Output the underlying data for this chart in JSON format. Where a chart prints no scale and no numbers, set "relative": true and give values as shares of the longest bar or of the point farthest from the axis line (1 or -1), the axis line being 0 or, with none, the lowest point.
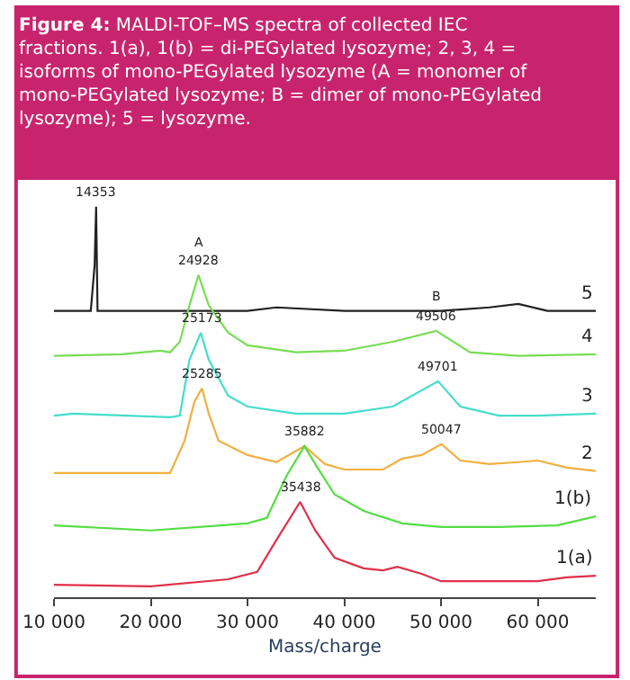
{
  "chart_data": {
    "type": "line",
    "relative": true,
    "title": "Figure 4: MALDI-TOF–MS spectra of collected IEC fractions. 1(a), 1(b) = di-PEGylated lysozyme; 2, 3, 4 = isoforms of mono-PEGylated lysozyme (A = monomer of mono-PEGylated lysozyme; B = dimer of mono-PEGylated lysozyme); 5 = lysozyme.",
    "xlabel": "Mass/charge",
    "xlim": [
      10000,
      66000
    ],
    "xticks": [
      {
        "value": 10000,
        "label": "10 000"
      },
      {
        "value": 20000,
        "label": "20 000"
      },
      {
        "value": 30000,
        "label": "30 000"
      },
      {
        "value": 40000,
        "label": "40 000"
      },
      {
        "value": 50000,
        "label": "50 000"
      },
      {
        "value": 60000,
        "label": "60 000"
      }
    ],
    "grid": false,
    "legend": false,
    "marker": "none",
    "line_style": "solid",
    "tick_labels": "x",
    "series": [
      {
        "name": "5",
        "color": "#222222",
        "x": [
          10000,
          13800,
          14200,
          14353,
          14500,
          24000,
          30000,
          33000,
          40000,
          44000,
          50000,
          55000,
          58000,
          61000,
          66000
        ],
        "values": [
          0.733,
          0.733,
          0.85,
          1.0,
          0.733,
          0.733,
          0.733,
          0.742,
          0.733,
          0.733,
          0.733,
          0.742,
          0.751,
          0.733,
          0.733
        ]
      },
      {
        "name": "4",
        "color": "#77dd55",
        "x": [
          10000,
          17000,
          21000,
          22000,
          23000,
          24000,
          24928,
          26000,
          28000,
          30000,
          35000,
          40000,
          45000,
          49506,
          53000,
          58000,
          66000
        ],
        "values": [
          0.618,
          0.622,
          0.631,
          0.627,
          0.654,
          0.747,
          0.825,
          0.747,
          0.677,
          0.645,
          0.627,
          0.631,
          0.654,
          0.682,
          0.627,
          0.618,
          0.622
        ]
      },
      {
        "name": "3",
        "color": "#44ddcc",
        "x": [
          10000,
          12000,
          22000,
          23000,
          24000,
          25173,
          26000,
          28000,
          30000,
          35000,
          40000,
          45000,
          49701,
          52000,
          56000,
          60000,
          66000
        ],
        "values": [
          0.465,
          0.47,
          0.461,
          0.465,
          0.608,
          0.677,
          0.608,
          0.516,
          0.488,
          0.47,
          0.47,
          0.488,
          0.553,
          0.488,
          0.465,
          0.465,
          0.47
        ]
      },
      {
        "name": "2",
        "color": "#f0b040",
        "x": [
          10000,
          22000,
          23500,
          24500,
          25285,
          26000,
          27000,
          30000,
          33000,
          35882,
          38000,
          40000,
          44000,
          46000,
          48000,
          50047,
          52000,
          55000,
          58000,
          60000,
          63000,
          66000
        ],
        "values": [
          0.318,
          0.318,
          0.401,
          0.5,
          0.535,
          0.47,
          0.401,
          0.364,
          0.346,
          0.387,
          0.341,
          0.327,
          0.327,
          0.355,
          0.364,
          0.392,
          0.35,
          0.341,
          0.346,
          0.35,
          0.332,
          0.323
        ]
      },
      {
        "name": "1(b)",
        "color": "#55dd44",
        "x": [
          10000,
          20000,
          30000,
          32000,
          34000,
          35882,
          37000,
          39000,
          42000,
          46000,
          50000,
          56000,
          62000,
          66000
        ],
        "values": [
          0.184,
          0.171,
          0.189,
          0.203,
          0.309,
          0.387,
          0.341,
          0.263,
          0.221,
          0.189,
          0.18,
          0.18,
          0.184,
          0.207
        ]
      },
      {
        "name": "1(a)",
        "color": "#e0304a",
        "x": [
          10000,
          20000,
          28000,
          31000,
          33000,
          35438,
          37000,
          39000,
          42000,
          44000,
          45500,
          48000,
          50000,
          60000,
          63000,
          66000
        ],
        "values": [
          0.032,
          0.028,
          0.046,
          0.065,
          0.147,
          0.244,
          0.171,
          0.101,
          0.074,
          0.069,
          0.078,
          0.06,
          0.041,
          0.041,
          0.051,
          0.055
        ]
      }
    ],
    "annotations": [
      {
        "text": "14353",
        "x": 14353,
        "y": 1.0
      },
      {
        "text": "24928",
        "x": 24928,
        "y": 0.825
      },
      {
        "text": "A",
        "x": 24928,
        "y": 0.825
      },
      {
        "text": "B",
        "x": 49506,
        "y": 0.733
      },
      {
        "text": "49506",
        "x": 49506,
        "y": 0.682
      },
      {
        "text": "25173",
        "x": 25173,
        "y": 0.677
      },
      {
        "text": "49701",
        "x": 49701,
        "y": 0.553
      },
      {
        "text": "25285",
        "x": 25285,
        "y": 0.535
      },
      {
        "text": "35882",
        "x": 35882,
        "y": 0.387
      },
      {
        "text": "50047",
        "x": 50047,
        "y": 0.392
      },
      {
        "text": "35438",
        "x": 35438,
        "y": 0.244
      }
    ]
  }
}
